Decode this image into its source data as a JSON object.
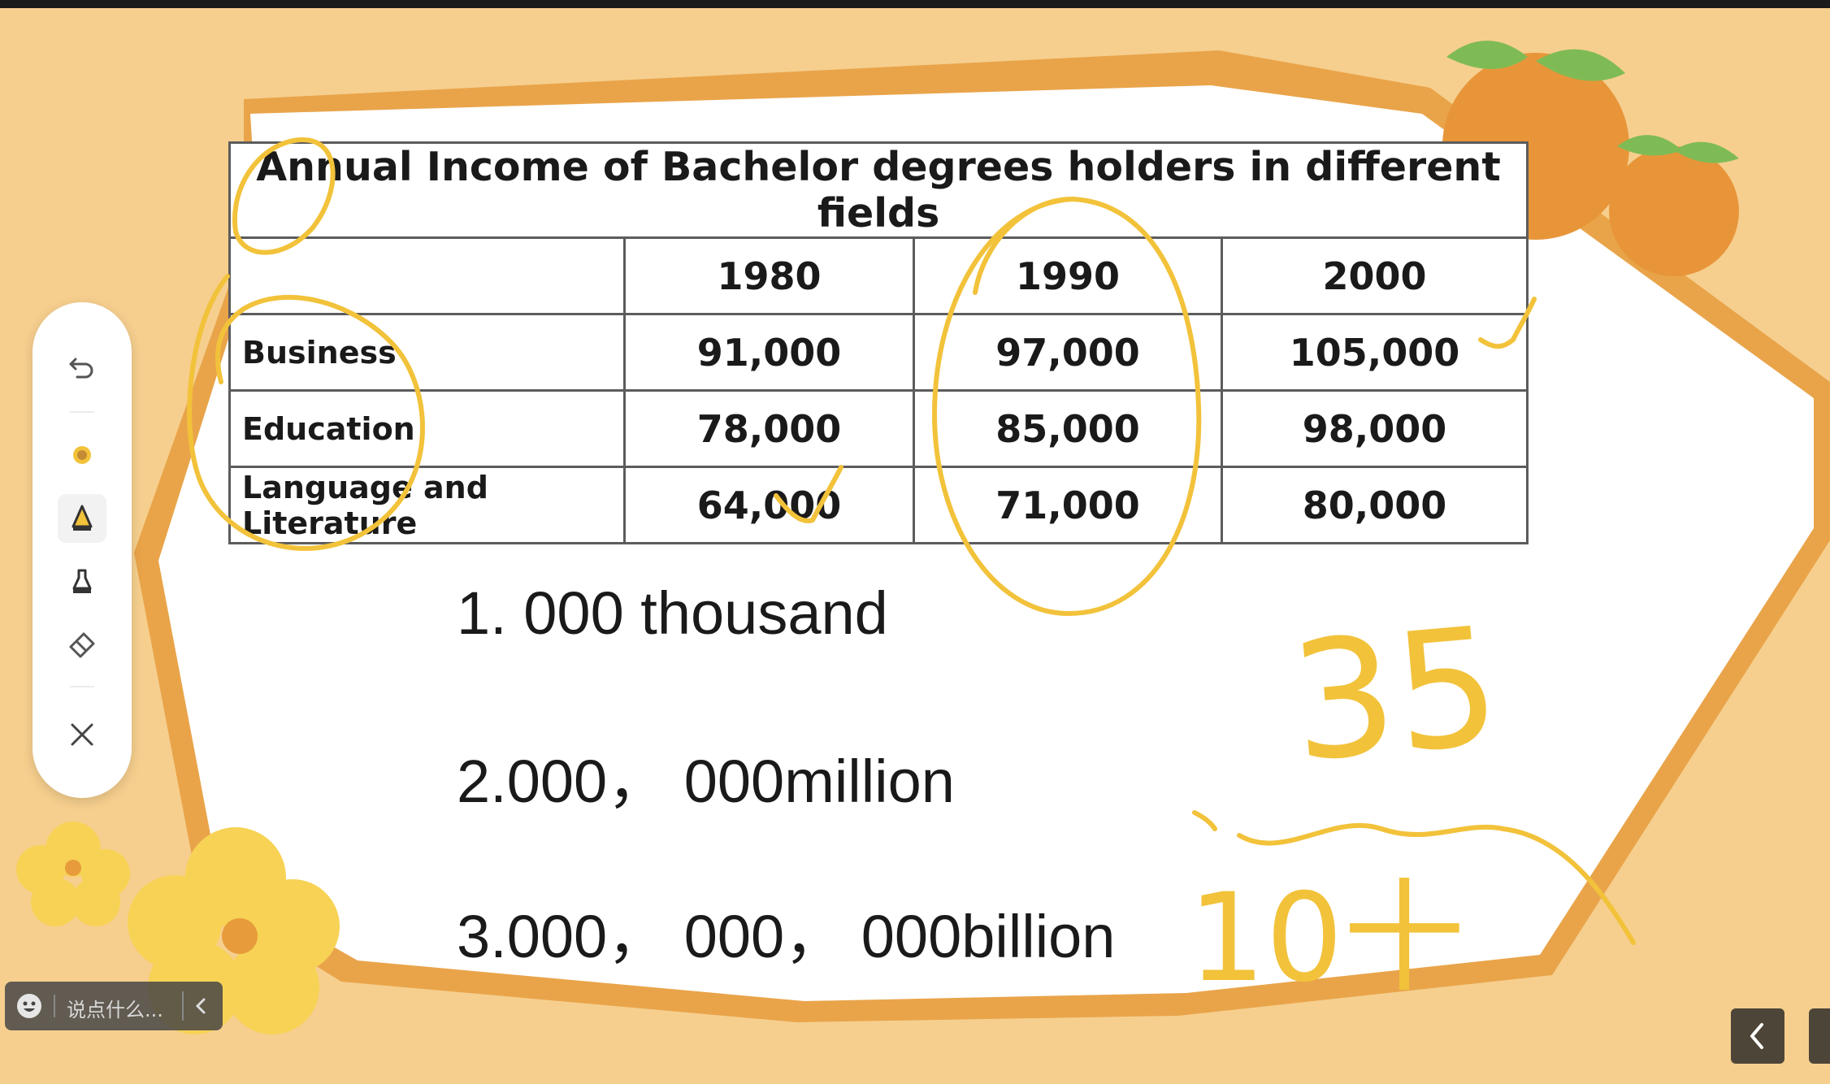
{
  "table": {
    "title": "Annual Income of Bachelor degrees holders in different fields",
    "header": [
      "",
      "1980",
      "1990",
      "2000"
    ],
    "rows": [
      {
        "label": "Business",
        "values": [
          "91,000",
          "97,000",
          "105,000"
        ]
      },
      {
        "label": "Education",
        "values": [
          "78,000",
          "85,000",
          "98,000"
        ]
      },
      {
        "label": "Language and Literature",
        "values": [
          "64,000",
          "71,000",
          "80,000"
        ]
      }
    ]
  },
  "slide_lines": [
    "1. 000 thousand",
    "2.000， 000million",
    "3.000， 000， 000billion"
  ],
  "handwriting": [
    "35",
    "10十"
  ],
  "toolbar": {
    "tools": [
      "undo-icon",
      "color-dot-icon",
      "pen-icon",
      "marker-icon",
      "eraser-icon",
      "close-icon"
    ],
    "selected": "pen-icon"
  },
  "comment_box": {
    "placeholder": "说点什么..."
  },
  "colors": {
    "background": "#f6cf8e",
    "ink": "#f2c23a",
    "slide_border": "#e9a44a"
  }
}
